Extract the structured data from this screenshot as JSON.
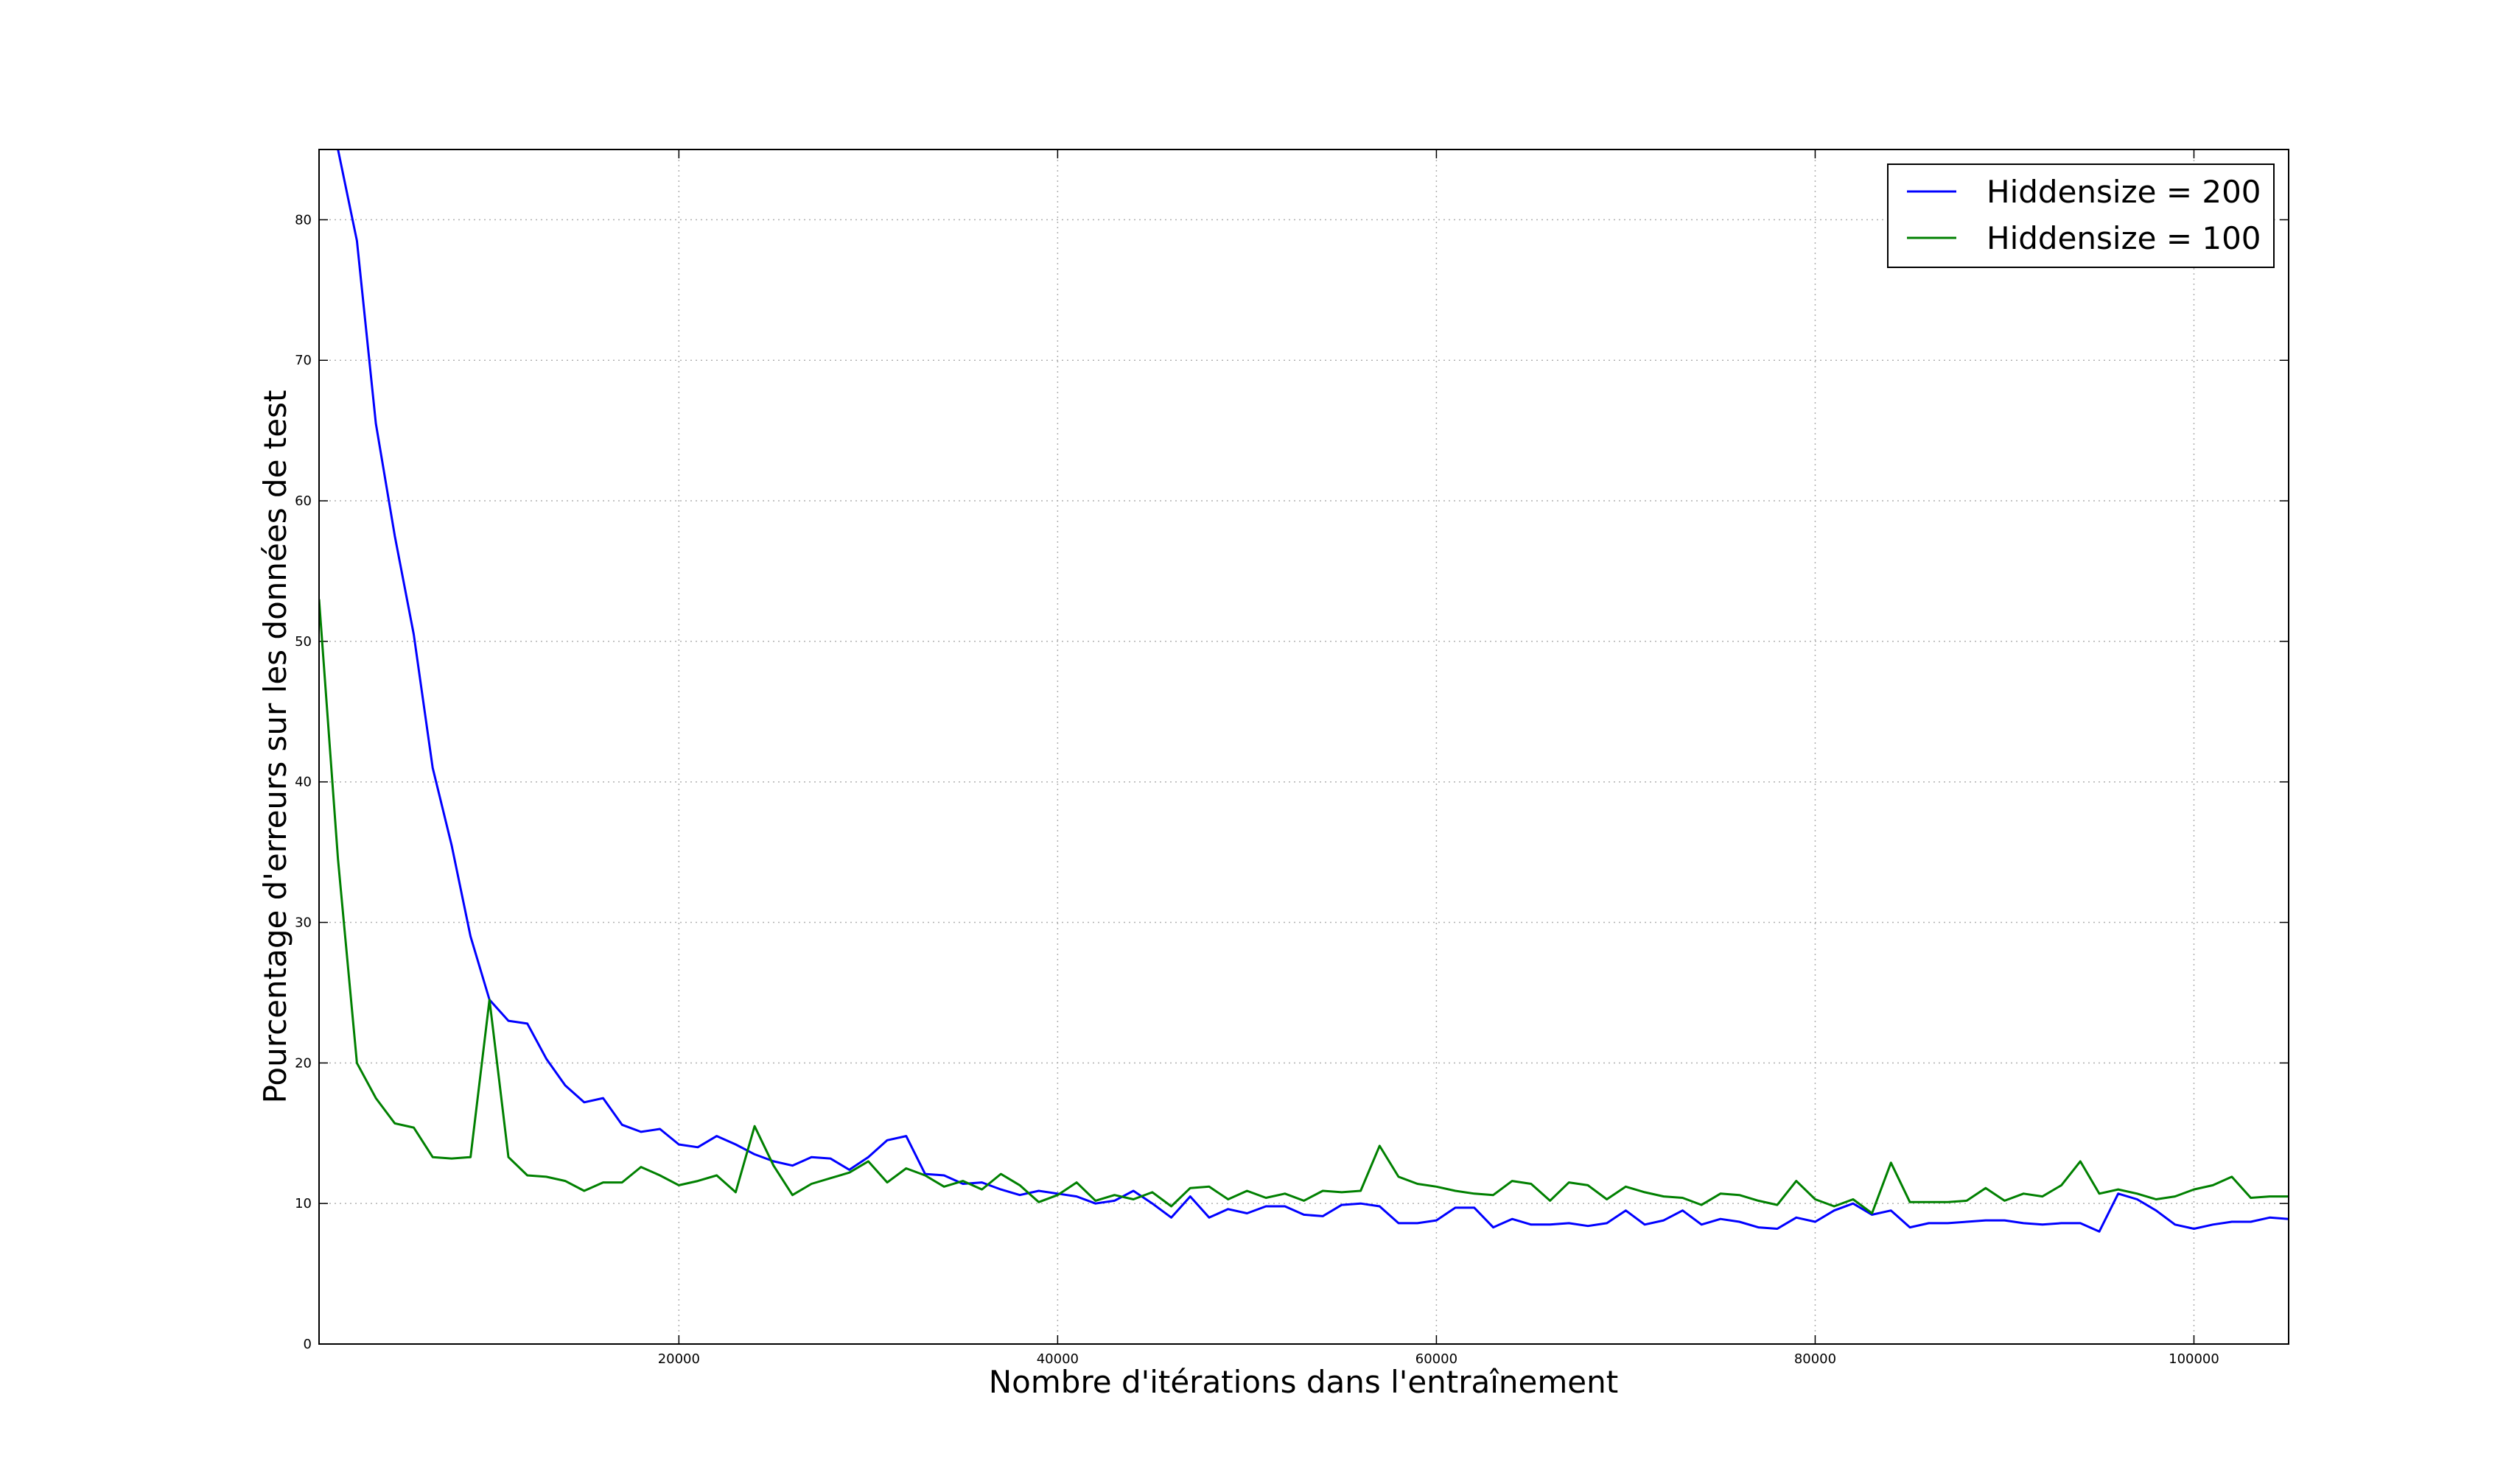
{
  "chart_data": {
    "type": "line",
    "xlabel": "Nombre d'itérations dans l'entraînement",
    "ylabel": "Pourcentage d'erreurs sur les données de test",
    "xlim": [
      1000,
      105000
    ],
    "ylim": [
      0,
      85
    ],
    "x_ticks": [
      20000,
      40000,
      60000,
      80000,
      100000
    ],
    "y_ticks": [
      0,
      10,
      20,
      30,
      40,
      50,
      60,
      70,
      80
    ],
    "grid": true,
    "legend_position": "top-right",
    "series": [
      {
        "name": "Hiddensize = 200",
        "color": "#0000ff",
        "x": [
          1000,
          2000,
          3000,
          4000,
          5000,
          6000,
          7000,
          8000,
          9000,
          10000,
          11000,
          12000,
          13000,
          14000,
          15000,
          16000,
          17000,
          18000,
          19000,
          20000,
          21000,
          22000,
          23000,
          24000,
          25000,
          26000,
          27000,
          28000,
          29000,
          30000,
          31000,
          32000,
          33000,
          34000,
          35000,
          36000,
          37000,
          38000,
          39000,
          40000,
          41000,
          42000,
          43000,
          44000,
          45000,
          46000,
          47000,
          48000,
          49000,
          50000,
          51000,
          52000,
          53000,
          54000,
          55000,
          56000,
          57000,
          58000,
          59000,
          60000,
          61000,
          62000,
          63000,
          64000,
          65000,
          66000,
          67000,
          68000,
          69000,
          70000,
          71000,
          72000,
          73000,
          74000,
          75000,
          76000,
          77000,
          78000,
          79000,
          80000,
          81000,
          82000,
          83000,
          84000,
          85000,
          86000,
          87000,
          88000,
          89000,
          90000,
          91000,
          92000,
          93000,
          94000,
          95000,
          96000,
          97000,
          98000,
          99000,
          100000,
          101000,
          102000,
          103000,
          104000,
          105000
        ],
        "y": [
          92,
          85,
          78.5,
          65.5,
          57.5,
          50.5,
          41,
          35.5,
          29,
          24.5,
          23,
          22.8,
          20.3,
          18.4,
          17.2,
          17.5,
          15.6,
          15.1,
          15.3,
          14.2,
          14,
          14.8,
          14.2,
          13.5,
          13,
          12.7,
          13.3,
          13.2,
          12.4,
          13.3,
          14.5,
          14.8,
          12.1,
          12,
          11.4,
          11.5,
          11,
          10.6,
          10.9,
          10.7,
          10.5,
          10,
          10.2,
          10.9,
          10,
          9,
          10.5,
          9,
          9.6,
          9.3,
          9.8,
          9.8,
          9.2,
          9.1,
          9.9,
          10,
          9.8,
          8.6,
          8.6,
          8.8,
          9.7,
          9.7,
          8.3,
          8.9,
          8.5,
          8.5,
          8.6,
          8.4,
          8.6,
          9.5,
          8.5,
          8.8,
          9.5,
          8.5,
          8.9,
          8.7,
          8.3,
          8.2,
          9,
          8.7,
          9.5,
          10,
          9.2,
          9.5,
          8.3,
          8.6,
          8.6,
          8.7,
          8.8,
          8.8,
          8.6,
          8.5,
          8.6,
          8.6,
          8,
          10.7,
          10.3,
          9.5,
          8.5,
          8.2,
          8.5,
          8.7,
          8.7,
          9,
          8.9
        ]
      },
      {
        "name": "Hiddensize = 100",
        "color": "#008000",
        "x": [
          1000,
          2000,
          3000,
          4000,
          5000,
          6000,
          7000,
          8000,
          9000,
          10000,
          11000,
          12000,
          13000,
          14000,
          15000,
          16000,
          17000,
          18000,
          19000,
          20000,
          21000,
          22000,
          23000,
          24000,
          25000,
          26000,
          27000,
          28000,
          29000,
          30000,
          31000,
          32000,
          33000,
          34000,
          35000,
          36000,
          37000,
          38000,
          39000,
          40000,
          41000,
          42000,
          43000,
          44000,
          45000,
          46000,
          47000,
          48000,
          49000,
          50000,
          51000,
          52000,
          53000,
          54000,
          55000,
          56000,
          57000,
          58000,
          59000,
          60000,
          61000,
          62000,
          63000,
          64000,
          65000,
          66000,
          67000,
          68000,
          69000,
          70000,
          71000,
          72000,
          73000,
          74000,
          75000,
          76000,
          77000,
          78000,
          79000,
          80000,
          81000,
          82000,
          83000,
          84000,
          85000,
          86000,
          87000,
          88000,
          89000,
          90000,
          91000,
          92000,
          93000,
          94000,
          95000,
          96000,
          97000,
          98000,
          99000,
          100000,
          101000,
          102000,
          103000,
          104000,
          105000
        ],
        "y": [
          53,
          34.5,
          20,
          17.5,
          15.7,
          15.4,
          13.3,
          13.2,
          13.3,
          24.5,
          13.3,
          12,
          11.9,
          11.6,
          10.9,
          11.5,
          11.5,
          12.6,
          12,
          11.3,
          11.6,
          12,
          10.8,
          15.5,
          12.7,
          10.6,
          11.4,
          11.8,
          12.2,
          13,
          11.5,
          12.5,
          12,
          11.2,
          11.6,
          11,
          12.1,
          11.3,
          10.1,
          10.6,
          11.5,
          10.2,
          10.6,
          10.3,
          10.8,
          9.8,
          11.1,
          11.2,
          10.3,
          10.9,
          10.4,
          10.7,
          10.2,
          10.9,
          10.8,
          10.9,
          14.1,
          11.9,
          11.4,
          11.2,
          10.9,
          10.7,
          10.6,
          11.6,
          11.4,
          10.2,
          11.5,
          11.3,
          10.3,
          11.2,
          10.8,
          10.5,
          10.4,
          9.9,
          10.7,
          10.6,
          10.2,
          9.9,
          11.6,
          10.3,
          9.8,
          10.3,
          9.3,
          12.9,
          10.1,
          10.1,
          10.1,
          10.2,
          11.1,
          10.2,
          10.7,
          10.5,
          11.3,
          13,
          10.7,
          11,
          10.7,
          10.3,
          10.5,
          11,
          11.3,
          11.9,
          10.4,
          10.5,
          10.5
        ]
      }
    ]
  }
}
